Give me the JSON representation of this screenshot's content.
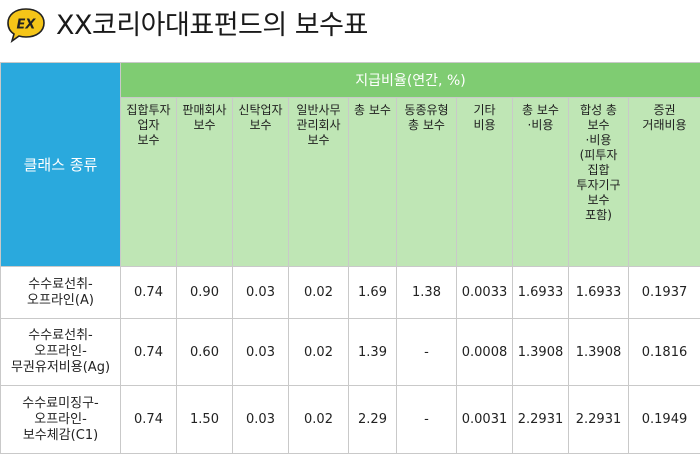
{
  "header": {
    "badge_text": "EX",
    "title": "XX코리아대표펀드의 보수표",
    "badge_color": "#f5c518"
  },
  "table": {
    "class_header": "클래스 종류",
    "group_header": "지급비율(연간, %)",
    "columns": [
      "집합투자\n업자\n보수",
      "판매회사\n보수",
      "신탁업자\n보수",
      "일반사무\n관리회사\n보수",
      "총 보수",
      "동종유형\n총 보수",
      "기타\n비용",
      "총 보수\n·비용",
      "합성 총\n보수\n·비용\n(피투자\n집합\n투자기구\n보수\n포함)",
      "증권\n거래비용"
    ],
    "rows": [
      {
        "name": "수수료선취-\n오프라인(A)",
        "values": [
          "0.74",
          "0.90",
          "0.03",
          "0.02",
          "1.69",
          "1.38",
          "0.0033",
          "1.6933",
          "1.6933",
          "0.1937"
        ]
      },
      {
        "name": "수수료선취-\n오프라인-\n무권유저비용(Ag)",
        "values": [
          "0.74",
          "0.60",
          "0.03",
          "0.02",
          "1.39",
          "-",
          "0.0008",
          "1.3908",
          "1.3908",
          "0.1816"
        ]
      },
      {
        "name": "수수료미징구-\n오프라인-\n보수체감(C1)",
        "values": [
          "0.74",
          "1.50",
          "0.03",
          "0.02",
          "2.29",
          "-",
          "0.0031",
          "2.2931",
          "2.2931",
          "0.1949"
        ]
      }
    ],
    "colors": {
      "class_header_bg": "#2aa9dd",
      "group_header_bg": "#7fcc72",
      "column_header_bg": "#bfe6b5"
    }
  }
}
